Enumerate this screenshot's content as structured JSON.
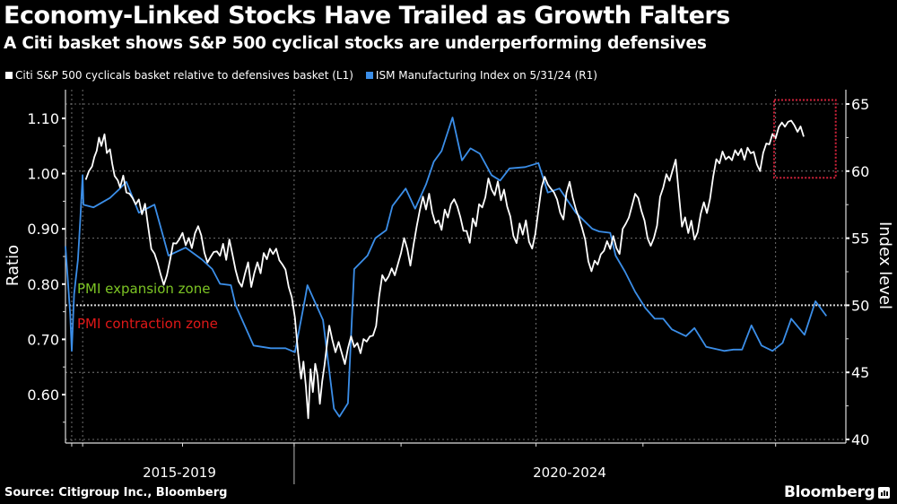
{
  "header": {
    "title": "Economy-Linked Stocks Have Trailed as Growth Falters",
    "subtitle": "A Citi basket shows S&P 500 cyclical stocks are underperforming defensives"
  },
  "footer": {
    "source": "Source: Citigroup Inc., Bloomberg",
    "brand": "Bloomberg"
  },
  "colors": {
    "background": "#000000",
    "ratio_series": "#ffffff",
    "pmi_series": "#3b8ee8",
    "expansion_label": "#7cc424",
    "contraction_label": "#e01818",
    "highlight_box": "#d0223a",
    "grid": "#8a8a8a"
  },
  "chart_data": {
    "type": "line",
    "title": "Economy-Linked Stocks Have Trailed as Growth Falters",
    "subtitle": "A Citi basket shows S&P 500 cyclical stocks are underperforming defensives",
    "x_axis": {
      "periods": [
        {
          "label": "2015-2019",
          "t_range": [
            0.0,
            0.293
          ]
        },
        {
          "label": "2020-2024",
          "t_range": [
            0.293,
            1.0
          ]
        }
      ],
      "note": "t is normalized position along the time axis (0 = start, 1 = end)"
    },
    "y_left": {
      "label": "Ratio",
      "ticks": [
        0.6,
        0.7,
        0.8,
        0.9,
        1.0,
        1.1
      ],
      "tick_labels": [
        "0.60",
        "0.70",
        "0.80",
        "0.90",
        "1.00",
        "1.10"
      ],
      "range": [
        0.515,
        1.15
      ]
    },
    "y_right": {
      "label": "Index level",
      "ticks": [
        40,
        45,
        50,
        55,
        60,
        65
      ],
      "tick_labels": [
        "40",
        "45",
        "50",
        "55",
        "60",
        "65"
      ],
      "range": [
        40,
        65.3
      ]
    },
    "legend": [
      {
        "name": "Citi S&P 500 cyclicals basket relative to defensives basket (L1)",
        "color": "#ffffff"
      },
      {
        "name": "ISM Manufacturing Index on 5/31/24 (R1)",
        "color": "#3b8ee8"
      }
    ],
    "legend_position": "top-left",
    "grid": true,
    "reference_line": {
      "axis": "right",
      "value": 50
    },
    "annotations": [
      {
        "text": "PMI expansion zone",
        "color": "#7cc424",
        "position": "above-50-line"
      },
      {
        "text": "PMI contraction zone",
        "color": "#e01818",
        "position": "below-50-line"
      },
      {
        "type": "highlight-box",
        "t_range": [
          0.908,
          0.987
        ],
        "right_axis_range": [
          59.5,
          65.3
        ],
        "color": "#d0223a"
      }
    ],
    "series": [
      {
        "name": "Citi S&P 500 cyclicals basket relative to defensives basket (L1)",
        "axis": "left",
        "t": [
          0.0,
          0.006,
          0.01,
          0.014,
          0.017,
          0.02,
          0.023,
          0.026,
          0.03,
          0.034,
          0.037,
          0.04,
          0.043,
          0.046,
          0.05,
          0.053,
          0.057,
          0.06,
          0.063,
          0.067,
          0.07,
          0.074,
          0.078,
          0.082,
          0.086,
          0.09,
          0.094,
          0.098,
          0.102,
          0.106,
          0.11,
          0.114,
          0.118,
          0.122,
          0.126,
          0.13,
          0.134,
          0.138,
          0.142,
          0.146,
          0.15,
          0.154,
          0.158,
          0.162,
          0.166,
          0.17,
          0.174,
          0.178,
          0.182,
          0.186,
          0.19,
          0.194,
          0.198,
          0.202,
          0.206,
          0.21,
          0.214,
          0.218,
          0.222,
          0.226,
          0.23,
          0.234,
          0.238,
          0.242,
          0.246,
          0.25,
          0.254,
          0.258,
          0.262,
          0.266,
          0.27,
          0.274,
          0.278,
          0.282,
          0.286,
          0.29,
          0.294,
          0.298,
          0.302,
          0.305,
          0.308,
          0.311,
          0.314,
          0.317,
          0.32,
          0.323,
          0.326,
          0.329,
          0.332,
          0.335,
          0.338,
          0.342,
          0.346,
          0.35,
          0.354,
          0.358,
          0.362,
          0.366,
          0.37,
          0.374,
          0.378,
          0.382,
          0.386,
          0.39,
          0.394,
          0.398,
          0.402,
          0.406,
          0.41,
          0.414,
          0.418,
          0.422,
          0.426,
          0.43,
          0.434,
          0.438,
          0.442,
          0.446,
          0.45,
          0.454,
          0.458,
          0.462,
          0.466,
          0.47,
          0.474,
          0.478,
          0.482,
          0.486,
          0.49,
          0.494,
          0.498,
          0.502,
          0.506,
          0.51,
          0.514,
          0.518,
          0.522,
          0.526,
          0.53,
          0.534,
          0.538,
          0.542,
          0.546,
          0.55,
          0.554,
          0.558,
          0.562,
          0.566,
          0.57,
          0.574,
          0.578,
          0.582,
          0.586,
          0.59,
          0.594,
          0.598,
          0.602,
          0.606,
          0.61,
          0.614,
          0.618,
          0.622,
          0.626,
          0.63,
          0.634,
          0.638,
          0.642,
          0.646,
          0.65,
          0.654,
          0.658,
          0.662,
          0.666,
          0.67,
          0.674,
          0.678,
          0.682,
          0.686,
          0.69,
          0.694,
          0.698,
          0.702,
          0.706,
          0.71,
          0.714,
          0.718,
          0.722,
          0.726,
          0.73,
          0.734,
          0.738,
          0.742,
          0.746,
          0.75,
          0.754,
          0.758,
          0.762,
          0.766,
          0.77,
          0.774,
          0.778,
          0.782,
          0.786,
          0.79,
          0.794,
          0.798,
          0.802,
          0.806,
          0.81,
          0.814,
          0.818,
          0.822,
          0.826,
          0.83,
          0.834,
          0.838,
          0.842,
          0.846,
          0.85,
          0.854,
          0.858,
          0.862,
          0.866,
          0.87,
          0.874,
          0.878,
          0.882,
          0.886,
          0.89,
          0.894,
          0.898,
          0.902,
          0.906,
          0.91,
          0.914,
          0.918,
          0.922,
          0.926,
          0.93,
          0.934,
          0.938,
          0.942,
          0.946,
          0.95,
          0.954,
          0.958,
          0.962,
          0.966,
          0.97,
          0.974,
          0.978,
          0.982,
          0.986,
          0.99
        ],
        "values": [
          null,
          null,
          null,
          null,
          null,
          null,
          null,
          0.99,
          1.0,
          1.01,
          1.03,
          1.04,
          1.06,
          1.05,
          1.07,
          1.04,
          1.05,
          1.02,
          1.0,
          0.99,
          0.98,
          1.0,
          0.97,
          0.96,
          0.95,
          0.94,
          0.95,
          0.92,
          0.94,
          0.9,
          0.87,
          0.86,
          0.84,
          0.82,
          0.8,
          0.82,
          0.85,
          0.88,
          0.87,
          0.88,
          0.89,
          0.87,
          0.88,
          0.86,
          0.89,
          0.91,
          0.89,
          0.86,
          0.84,
          0.85,
          0.86,
          0.86,
          0.85,
          0.87,
          0.84,
          0.88,
          0.85,
          0.82,
          0.8,
          0.79,
          0.82,
          0.84,
          0.8,
          0.82,
          0.84,
          0.82,
          0.86,
          0.84,
          0.86,
          0.85,
          0.86,
          0.84,
          0.83,
          0.82,
          0.79,
          0.78,
          0.74,
          0.68,
          0.63,
          0.66,
          0.62,
          0.56,
          0.64,
          0.6,
          0.65,
          0.63,
          0.58,
          0.62,
          0.65,
          0.69,
          0.73,
          0.7,
          0.68,
          0.7,
          0.68,
          0.66,
          0.69,
          0.7,
          0.68,
          0.69,
          0.67,
          0.7,
          0.69,
          0.7,
          0.71,
          0.73,
          0.78,
          0.82,
          0.81,
          0.82,
          0.83,
          0.82,
          0.83,
          0.85,
          0.88,
          0.86,
          0.83,
          0.87,
          0.9,
          0.94,
          0.96,
          0.94,
          0.97,
          0.93,
          0.91,
          0.92,
          0.9,
          0.93,
          0.92,
          0.94,
          0.95,
          0.94,
          0.92,
          0.89,
          0.9,
          0.88,
          0.92,
          0.91,
          0.95,
          0.94,
          0.96,
          0.99,
          0.97,
          0.96,
          0.98,
          0.95,
          0.97,
          0.94,
          0.92,
          0.89,
          0.88,
          0.91,
          0.89,
          0.92,
          0.88,
          0.87,
          0.89,
          0.93,
          0.97,
          0.99,
          0.98,
          0.97,
          0.96,
          0.95,
          0.93,
          0.92,
          0.97,
          0.99,
          0.96,
          0.94,
          0.92,
          0.9,
          0.88,
          0.84,
          0.82,
          0.84,
          0.83,
          0.85,
          0.86,
          0.88,
          0.87,
          0.89,
          0.87,
          0.86,
          0.9,
          0.91,
          0.92,
          0.94,
          0.96,
          0.95,
          0.93,
          0.91,
          0.88,
          0.87,
          0.89,
          0.91,
          0.96,
          0.98,
          1.0,
          0.99,
          1.01,
          1.02,
          0.96,
          0.9,
          0.92,
          0.89,
          0.91,
          0.88,
          0.9,
          0.93,
          0.95,
          0.93,
          0.96,
          1.0,
          1.03,
          1.02,
          1.04,
          1.02,
          1.03,
          1.02,
          1.04,
          1.03,
          1.04,
          1.03,
          1.05,
          1.04,
          1.04,
          1.02,
          1.01,
          1.04,
          1.06,
          1.05,
          1.07,
          1.06,
          1.08,
          1.09,
          1.08,
          1.09,
          1.1,
          1.09,
          1.08,
          1.09,
          1.07,
          null
        ]
      },
      {
        "name": "ISM Manufacturing Index on 5/31/24 (R1)",
        "axis": "right",
        "t": [
          0.0,
          0.006,
          0.008,
          0.011,
          0.016,
          0.019,
          0.022,
          0.023,
          0.036,
          0.057,
          0.068,
          0.078,
          0.094,
          0.114,
          0.132,
          0.154,
          0.175,
          0.188,
          0.198,
          0.212,
          0.218,
          0.241,
          0.263,
          0.282,
          0.294,
          0.307,
          0.31,
          0.33,
          0.344,
          0.351,
          0.362,
          0.37,
          0.387,
          0.397,
          0.411,
          0.419,
          0.436,
          0.448,
          0.462,
          0.472,
          0.482,
          0.496,
          0.508,
          0.519,
          0.531,
          0.546,
          0.557,
          0.569,
          0.589,
          0.606,
          0.618,
          0.633,
          0.654,
          0.675,
          0.684,
          0.698,
          0.705,
          0.717,
          0.73,
          0.743,
          0.755,
          0.766,
          0.777,
          0.795,
          0.806,
          0.821,
          0.844,
          0.856,
          0.867,
          0.879,
          0.892,
          0.906,
          0.919,
          0.93,
          0.947,
          0.961,
          0.975
        ],
        "values": [
          54.4,
          49.4,
          46.6,
          50.8,
          53.4,
          56.4,
          59.7,
          57.5,
          57.3,
          58.0,
          58.6,
          59.2,
          56.9,
          57.5,
          53.7,
          54.3,
          53.4,
          52.7,
          51.6,
          51.5,
          50.0,
          47.0,
          46.8,
          46.8,
          46.5,
          50.5,
          51.5,
          48.9,
          42.3,
          41.7,
          42.7,
          52.7,
          53.7,
          55.0,
          55.6,
          57.4,
          58.7,
          57.2,
          59.0,
          60.7,
          61.5,
          64.0,
          60.8,
          61.7,
          61.3,
          59.7,
          59.3,
          60.2,
          60.3,
          60.6,
          58.4,
          58.7,
          56.9,
          55.7,
          55.5,
          55.4,
          53.7,
          52.5,
          51.0,
          49.8,
          49.0,
          49.0,
          48.2,
          47.7,
          48.3,
          46.9,
          46.6,
          46.7,
          46.7,
          48.5,
          47.0,
          46.6,
          47.2,
          49.0,
          47.8,
          50.3,
          49.2
        ]
      }
    ]
  }
}
